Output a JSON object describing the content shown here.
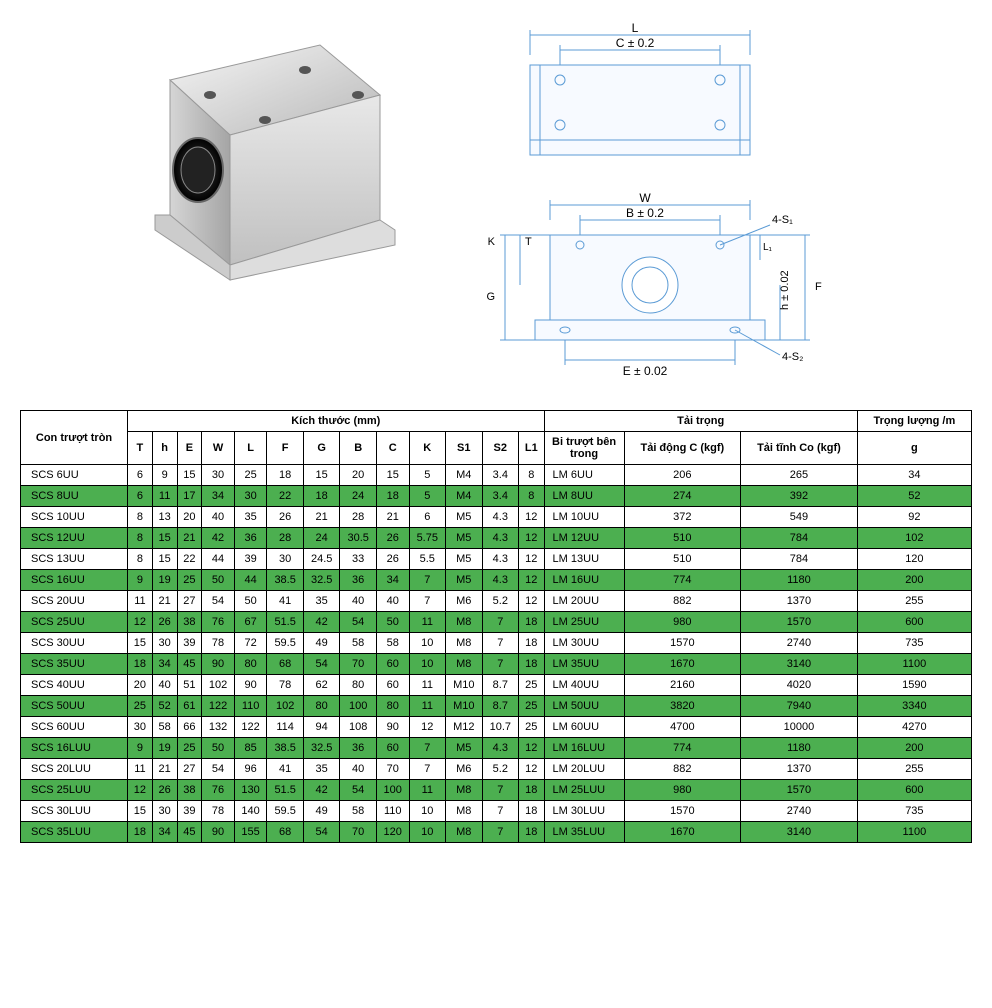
{
  "diagrams": {
    "top_labels": {
      "L": "L",
      "C": "C ± 0.2"
    },
    "front_labels": {
      "K": "K",
      "G": "G",
      "T": "T",
      "W": "W",
      "B": "B ± 0.2",
      "S1": "4-S₁",
      "h": "h ± 0.02",
      "F": "F",
      "L1": "L₁",
      "E": "E ± 0.02",
      "S2": "4-S₂"
    }
  },
  "table": {
    "headers": {
      "model": "Con trượt tròn",
      "dimensions": "Kích thước (mm)",
      "load": "Tải trọng",
      "weight": "Trọng lượng /m",
      "dim_cols": [
        "T",
        "h",
        "E",
        "W",
        "L",
        "F",
        "G",
        "B",
        "C",
        "K",
        "S1",
        "S2",
        "L1"
      ],
      "bearing": "Bi trượt bên trong",
      "dynamic": "Tải động C (kgf)",
      "static": "Tải tĩnh Co (kgf)",
      "weight_unit": "g"
    },
    "rows": [
      {
        "model": "SCS 6UU",
        "vals": [
          "6",
          "9",
          "15",
          "30",
          "25",
          "18",
          "15",
          "20",
          "15",
          "5",
          "M4",
          "3.4",
          "8"
        ],
        "bearing": "LM 6UU",
        "dyn": "206",
        "stat": "265",
        "wt": "34",
        "hl": false
      },
      {
        "model": "SCS 8UU",
        "vals": [
          "6",
          "11",
          "17",
          "34",
          "30",
          "22",
          "18",
          "24",
          "18",
          "5",
          "M4",
          "3.4",
          "8"
        ],
        "bearing": "LM 8UU",
        "dyn": "274",
        "stat": "392",
        "wt": "52",
        "hl": true
      },
      {
        "model": "SCS 10UU",
        "vals": [
          "8",
          "13",
          "20",
          "40",
          "35",
          "26",
          "21",
          "28",
          "21",
          "6",
          "M5",
          "4.3",
          "12"
        ],
        "bearing": "LM 10UU",
        "dyn": "372",
        "stat": "549",
        "wt": "92",
        "hl": false
      },
      {
        "model": "SCS 12UU",
        "vals": [
          "8",
          "15",
          "21",
          "42",
          "36",
          "28",
          "24",
          "30.5",
          "26",
          "5.75",
          "M5",
          "4.3",
          "12"
        ],
        "bearing": "LM 12UU",
        "dyn": "510",
        "stat": "784",
        "wt": "102",
        "hl": true
      },
      {
        "model": "SCS 13UU",
        "vals": [
          "8",
          "15",
          "22",
          "44",
          "39",
          "30",
          "24.5",
          "33",
          "26",
          "5.5",
          "M5",
          "4.3",
          "12"
        ],
        "bearing": "LM 13UU",
        "dyn": "510",
        "stat": "784",
        "wt": "120",
        "hl": false
      },
      {
        "model": "SCS 16UU",
        "vals": [
          "9",
          "19",
          "25",
          "50",
          "44",
          "38.5",
          "32.5",
          "36",
          "34",
          "7",
          "M5",
          "4.3",
          "12"
        ],
        "bearing": "LM 16UU",
        "dyn": "774",
        "stat": "1180",
        "wt": "200",
        "hl": true
      },
      {
        "model": "SCS 20UU",
        "vals": [
          "11",
          "21",
          "27",
          "54",
          "50",
          "41",
          "35",
          "40",
          "40",
          "7",
          "M6",
          "5.2",
          "12"
        ],
        "bearing": "LM 20UU",
        "dyn": "882",
        "stat": "1370",
        "wt": "255",
        "hl": false
      },
      {
        "model": "SCS 25UU",
        "vals": [
          "12",
          "26",
          "38",
          "76",
          "67",
          "51.5",
          "42",
          "54",
          "50",
          "11",
          "M8",
          "7",
          "18"
        ],
        "bearing": "LM 25UU",
        "dyn": "980",
        "stat": "1570",
        "wt": "600",
        "hl": true
      },
      {
        "model": "SCS 30UU",
        "vals": [
          "15",
          "30",
          "39",
          "78",
          "72",
          "59.5",
          "49",
          "58",
          "58",
          "10",
          "M8",
          "7",
          "18"
        ],
        "bearing": "LM 30UU",
        "dyn": "1570",
        "stat": "2740",
        "wt": "735",
        "hl": false
      },
      {
        "model": "SCS 35UU",
        "vals": [
          "18",
          "34",
          "45",
          "90",
          "80",
          "68",
          "54",
          "70",
          "60",
          "10",
          "M8",
          "7",
          "18"
        ],
        "bearing": "LM 35UU",
        "dyn": "1670",
        "stat": "3140",
        "wt": "1100",
        "hl": true
      },
      {
        "model": "SCS 40UU",
        "vals": [
          "20",
          "40",
          "51",
          "102",
          "90",
          "78",
          "62",
          "80",
          "60",
          "11",
          "M10",
          "8.7",
          "25"
        ],
        "bearing": "LM 40UU",
        "dyn": "2160",
        "stat": "4020",
        "wt": "1590",
        "hl": false
      },
      {
        "model": "SCS 50UU",
        "vals": [
          "25",
          "52",
          "61",
          "122",
          "110",
          "102",
          "80",
          "100",
          "80",
          "11",
          "M10",
          "8.7",
          "25"
        ],
        "bearing": "LM 50UU",
        "dyn": "3820",
        "stat": "7940",
        "wt": "3340",
        "hl": true
      },
      {
        "model": "SCS 60UU",
        "vals": [
          "30",
          "58",
          "66",
          "132",
          "122",
          "114",
          "94",
          "108",
          "90",
          "12",
          "M12",
          "10.7",
          "25"
        ],
        "bearing": "LM 60UU",
        "dyn": "4700",
        "stat": "10000",
        "wt": "4270",
        "hl": false
      },
      {
        "model": "SCS 16LUU",
        "vals": [
          "9",
          "19",
          "25",
          "50",
          "85",
          "38.5",
          "32.5",
          "36",
          "60",
          "7",
          "M5",
          "4.3",
          "12"
        ],
        "bearing": "LM 16LUU",
        "dyn": "774",
        "stat": "1180",
        "wt": "200",
        "hl": true
      },
      {
        "model": "SCS 20LUU",
        "vals": [
          "11",
          "21",
          "27",
          "54",
          "96",
          "41",
          "35",
          "40",
          "70",
          "7",
          "M6",
          "5.2",
          "12"
        ],
        "bearing": "LM 20LUU",
        "dyn": "882",
        "stat": "1370",
        "wt": "255",
        "hl": false
      },
      {
        "model": "SCS 25LUU",
        "vals": [
          "12",
          "26",
          "38",
          "76",
          "130",
          "51.5",
          "42",
          "54",
          "100",
          "11",
          "M8",
          "7",
          "18"
        ],
        "bearing": "LM 25LUU",
        "dyn": "980",
        "stat": "1570",
        "wt": "600",
        "hl": true
      },
      {
        "model": "SCS 30LUU",
        "vals": [
          "15",
          "30",
          "39",
          "78",
          "140",
          "59.5",
          "49",
          "58",
          "110",
          "10",
          "M8",
          "7",
          "18"
        ],
        "bearing": "LM 30LUU",
        "dyn": "1570",
        "stat": "2740",
        "wt": "735",
        "hl": false
      },
      {
        "model": "SCS 35LUU",
        "vals": [
          "18",
          "34",
          "45",
          "90",
          "155",
          "68",
          "54",
          "70",
          "120",
          "10",
          "M8",
          "7",
          "18"
        ],
        "bearing": "LM 35LUU",
        "dyn": "1670",
        "stat": "3140",
        "wt": "1100",
        "hl": true
      }
    ]
  },
  "colors": {
    "highlight": "#4caf50",
    "border": "#000000",
    "diagram_line": "#5b9bd5",
    "diagram_bg_light": "#e8f0ff"
  }
}
